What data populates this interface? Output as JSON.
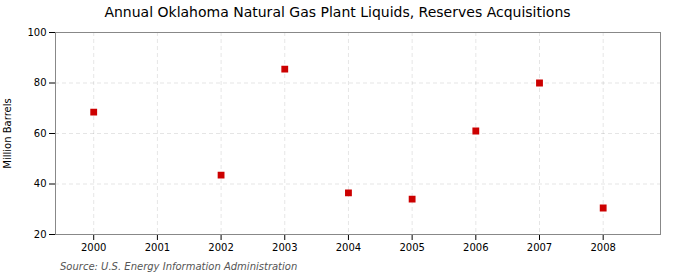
{
  "chart_data": {
    "type": "scatter",
    "title": "Annual Oklahoma Natural Gas Plant Liquids, Reserves Acquisitions",
    "ylabel": "Million Barrels",
    "caption": "Source: U.S. Energy Information Administration",
    "x": [
      2000,
      2002,
      2003,
      2004,
      2005,
      2006,
      2007,
      2008
    ],
    "values": [
      68.5,
      43.5,
      85.5,
      36.5,
      34.0,
      61.0,
      80.0,
      30.5
    ],
    "color": "#cc0000",
    "marker": "square",
    "xlim": [
      1999.4,
      2008.9
    ],
    "ylim": [
      20,
      100
    ],
    "xticks": [
      2000,
      2001,
      2002,
      2003,
      2004,
      2005,
      2006,
      2007,
      2008
    ],
    "yticks": [
      20,
      40,
      60,
      80,
      100
    ],
    "grid": true
  }
}
